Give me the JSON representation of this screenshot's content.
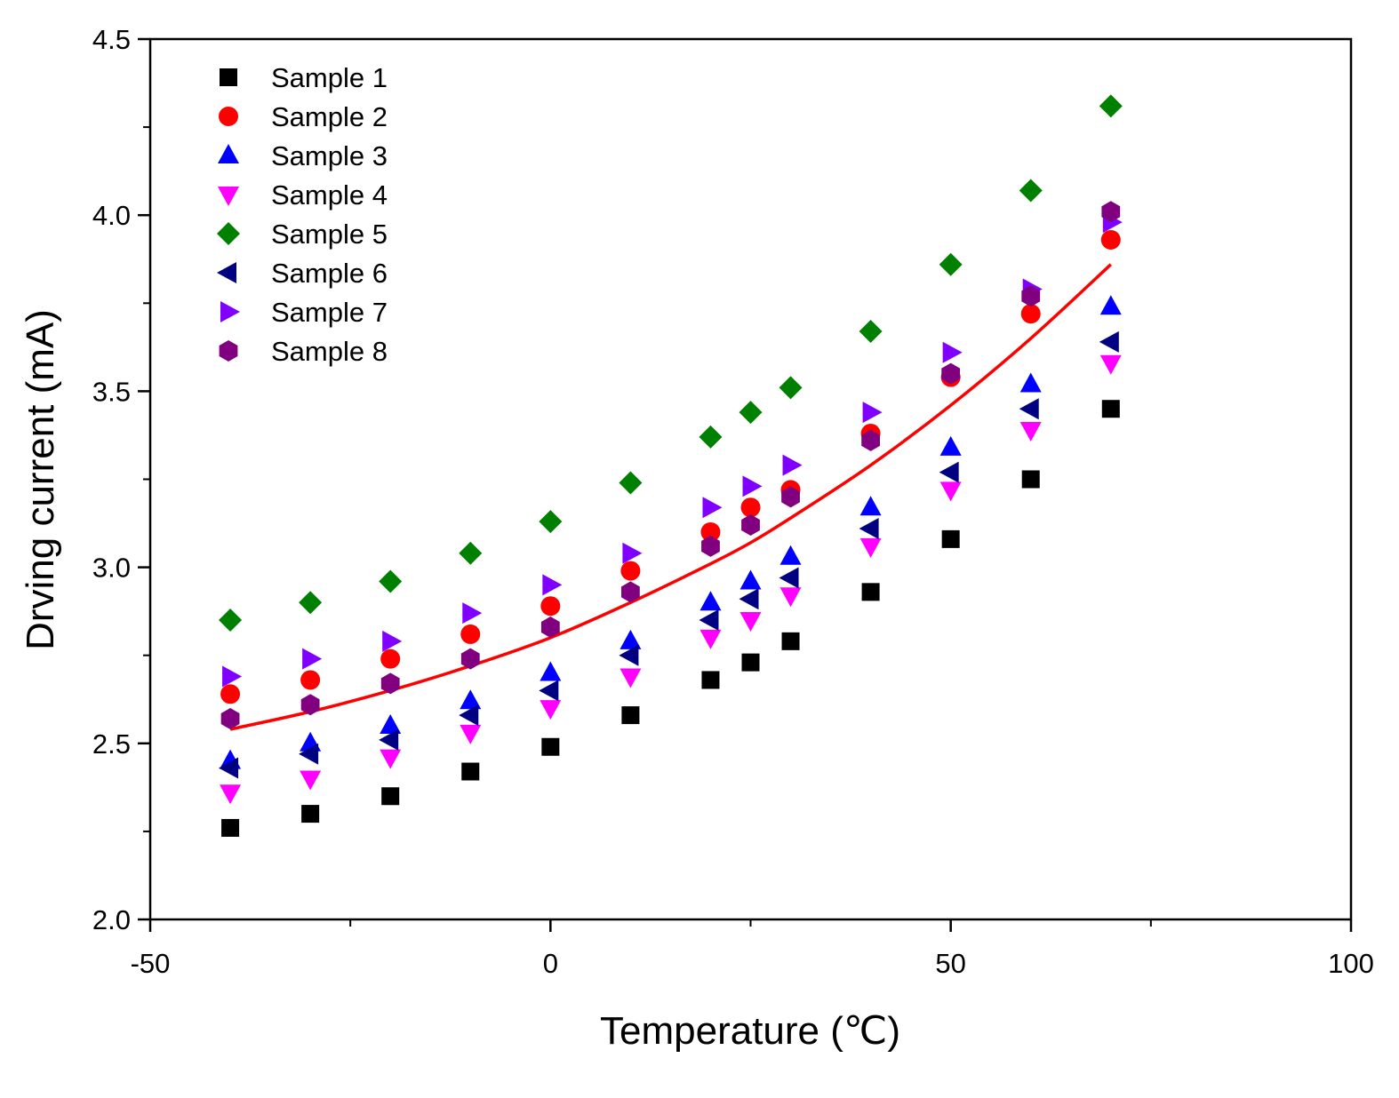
{
  "chart_data": {
    "type": "scatter",
    "title": "",
    "xlabel": "Temperature (℃)",
    "ylabel": "Drving current (mA)",
    "xlim": [
      -50,
      100
    ],
    "ylim": [
      2.0,
      4.5
    ],
    "xticks": [
      -50,
      0,
      50,
      100
    ],
    "xtick_labels": [
      "-50",
      "0",
      "50",
      "100"
    ],
    "xminor": [
      -25,
      25,
      75
    ],
    "yticks": [
      2.0,
      2.5,
      3.0,
      3.5,
      4.0,
      4.5
    ],
    "ytick_labels": [
      "2.0",
      "2.5",
      "3.0",
      "3.5",
      "4.0",
      "4.5"
    ],
    "yminor": [
      2.25,
      2.75,
      3.25,
      3.75,
      4.25
    ],
    "grid": false,
    "legend_position": "top-left",
    "x": [
      -40,
      -30,
      -20,
      -10,
      0,
      10,
      20,
      25,
      30,
      40,
      50,
      60,
      70
    ],
    "series": [
      {
        "name": "Sample 1",
        "marker": "square",
        "color": "#000000",
        "values": [
          2.26,
          2.3,
          2.35,
          2.42,
          2.49,
          2.58,
          2.68,
          2.73,
          2.79,
          2.93,
          3.08,
          3.25,
          3.45
        ]
      },
      {
        "name": "Sample 2",
        "marker": "circle",
        "color": "#ff0000",
        "values": [
          2.64,
          2.68,
          2.74,
          2.81,
          2.89,
          2.99,
          3.1,
          3.17,
          3.22,
          3.38,
          3.54,
          3.72,
          3.93
        ]
      },
      {
        "name": "Sample 3",
        "marker": "triangle-up",
        "color": "#0000ff",
        "values": [
          2.45,
          2.5,
          2.55,
          2.62,
          2.7,
          2.79,
          2.9,
          2.96,
          3.03,
          3.17,
          3.34,
          3.52,
          3.74
        ]
      },
      {
        "name": "Sample 4",
        "marker": "triangle-down",
        "color": "#ff00ff",
        "values": [
          2.36,
          2.4,
          2.46,
          2.53,
          2.6,
          2.69,
          2.8,
          2.85,
          2.92,
          3.06,
          3.22,
          3.39,
          3.58
        ]
      },
      {
        "name": "Sample 5",
        "marker": "diamond",
        "color": "#008000",
        "values": [
          2.85,
          2.9,
          2.96,
          3.04,
          3.13,
          3.24,
          3.37,
          3.44,
          3.51,
          3.67,
          3.86,
          4.07,
          4.31
        ]
      },
      {
        "name": "Sample 6",
        "marker": "triangle-left",
        "color": "#000080",
        "values": [
          2.43,
          2.47,
          2.51,
          2.58,
          2.65,
          2.75,
          2.85,
          2.91,
          2.97,
          3.11,
          3.27,
          3.45,
          3.64
        ]
      },
      {
        "name": "Sample 7",
        "marker": "triangle-right",
        "color": "#8000ff",
        "values": [
          2.69,
          2.74,
          2.79,
          2.87,
          2.95,
          3.04,
          3.17,
          3.23,
          3.29,
          3.44,
          3.61,
          3.79,
          3.98
        ]
      },
      {
        "name": "Sample 8",
        "marker": "hexagon",
        "color": "#800080",
        "values": [
          2.57,
          2.61,
          2.67,
          2.74,
          2.83,
          2.93,
          3.06,
          3.12,
          3.2,
          3.36,
          3.55,
          3.77,
          4.01
        ]
      }
    ],
    "fit_line": {
      "name": "fit",
      "color": "#ff0000",
      "x": [
        -40,
        -30,
        -20,
        -10,
        0,
        10,
        20,
        25,
        30,
        40,
        50,
        60,
        70
      ],
      "y": [
        2.54,
        2.59,
        2.65,
        2.72,
        2.8,
        2.9,
        3.01,
        3.07,
        3.14,
        3.29,
        3.46,
        3.65,
        3.86
      ]
    }
  }
}
